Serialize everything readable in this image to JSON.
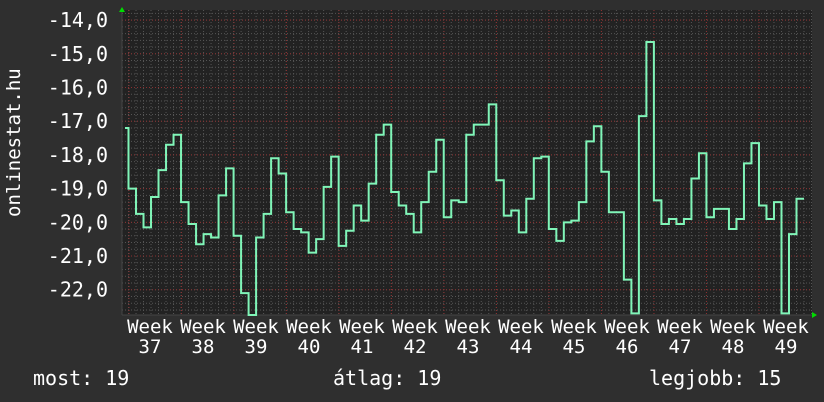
{
  "chart_data": {
    "type": "line",
    "step": true,
    "ylabel": "onlinestat.hu",
    "ylim": [
      -22.75,
      -13.7
    ],
    "y_ticks": [
      {
        "value": -14,
        "label": "-14,0"
      },
      {
        "value": -15,
        "label": "-15,0"
      },
      {
        "value": -16,
        "label": "-16,0"
      },
      {
        "value": -17,
        "label": "-17,0"
      },
      {
        "value": -18,
        "label": "-18,0"
      },
      {
        "value": -19,
        "label": "-19,0"
      },
      {
        "value": -20,
        "label": "-20,0"
      },
      {
        "value": -21,
        "label": "-21,0"
      },
      {
        "value": -22,
        "label": "-22,0"
      }
    ],
    "x_tick_labels": [
      "Week 37",
      "Week 38",
      "Week 39",
      "Week 40",
      "Week 41",
      "Week 42",
      "Week 43",
      "Week 44",
      "Week 45",
      "Week 46",
      "Week 47",
      "Week 48",
      "Week 49"
    ],
    "grid": true,
    "series": [
      {
        "color": "#80f5b8",
        "values": [
          -17.2,
          -19.0,
          -19.75,
          -20.15,
          -19.25,
          -18.45,
          -17.7,
          -17.4,
          -19.4,
          -20.05,
          -20.65,
          -20.35,
          -20.45,
          -19.2,
          -18.4,
          -20.4,
          -22.1,
          -22.8,
          -20.45,
          -19.75,
          -18.1,
          -18.55,
          -19.7,
          -20.2,
          -20.3,
          -20.9,
          -20.5,
          -18.95,
          -18.05,
          -20.7,
          -20.25,
          -19.5,
          -19.95,
          -18.85,
          -17.4,
          -17.1,
          -19.1,
          -19.5,
          -19.75,
          -20.3,
          -19.4,
          -18.5,
          -17.55,
          -19.85,
          -19.35,
          -19.4,
          -17.4,
          -17.1,
          -17.1,
          -16.5,
          -18.75,
          -19.8,
          -19.65,
          -20.3,
          -19.3,
          -18.1,
          -18.05,
          -20.2,
          -20.55,
          -20.0,
          -19.95,
          -19.4,
          -17.6,
          -17.15,
          -18.5,
          -19.7,
          -19.7,
          -21.7,
          -22.7,
          -16.85,
          -14.65,
          -19.35,
          -20.05,
          -19.9,
          -20.05,
          -19.9,
          -18.7,
          -17.95,
          -19.85,
          -19.6,
          -19.6,
          -20.2,
          -19.9,
          -18.25,
          -17.65,
          -19.5,
          -19.9,
          -19.4,
          -22.7,
          -20.35,
          -19.3
        ]
      }
    ]
  },
  "colors": {
    "background": "#2f2f2f",
    "plot_background": "#222222",
    "major_grid": "#8a3030",
    "minor_grid": "#555555",
    "axis_arrow": "#00dd00"
  },
  "stats": {
    "current": "most: 19",
    "average": "átlag: 19",
    "best": "legjobb: 15"
  }
}
